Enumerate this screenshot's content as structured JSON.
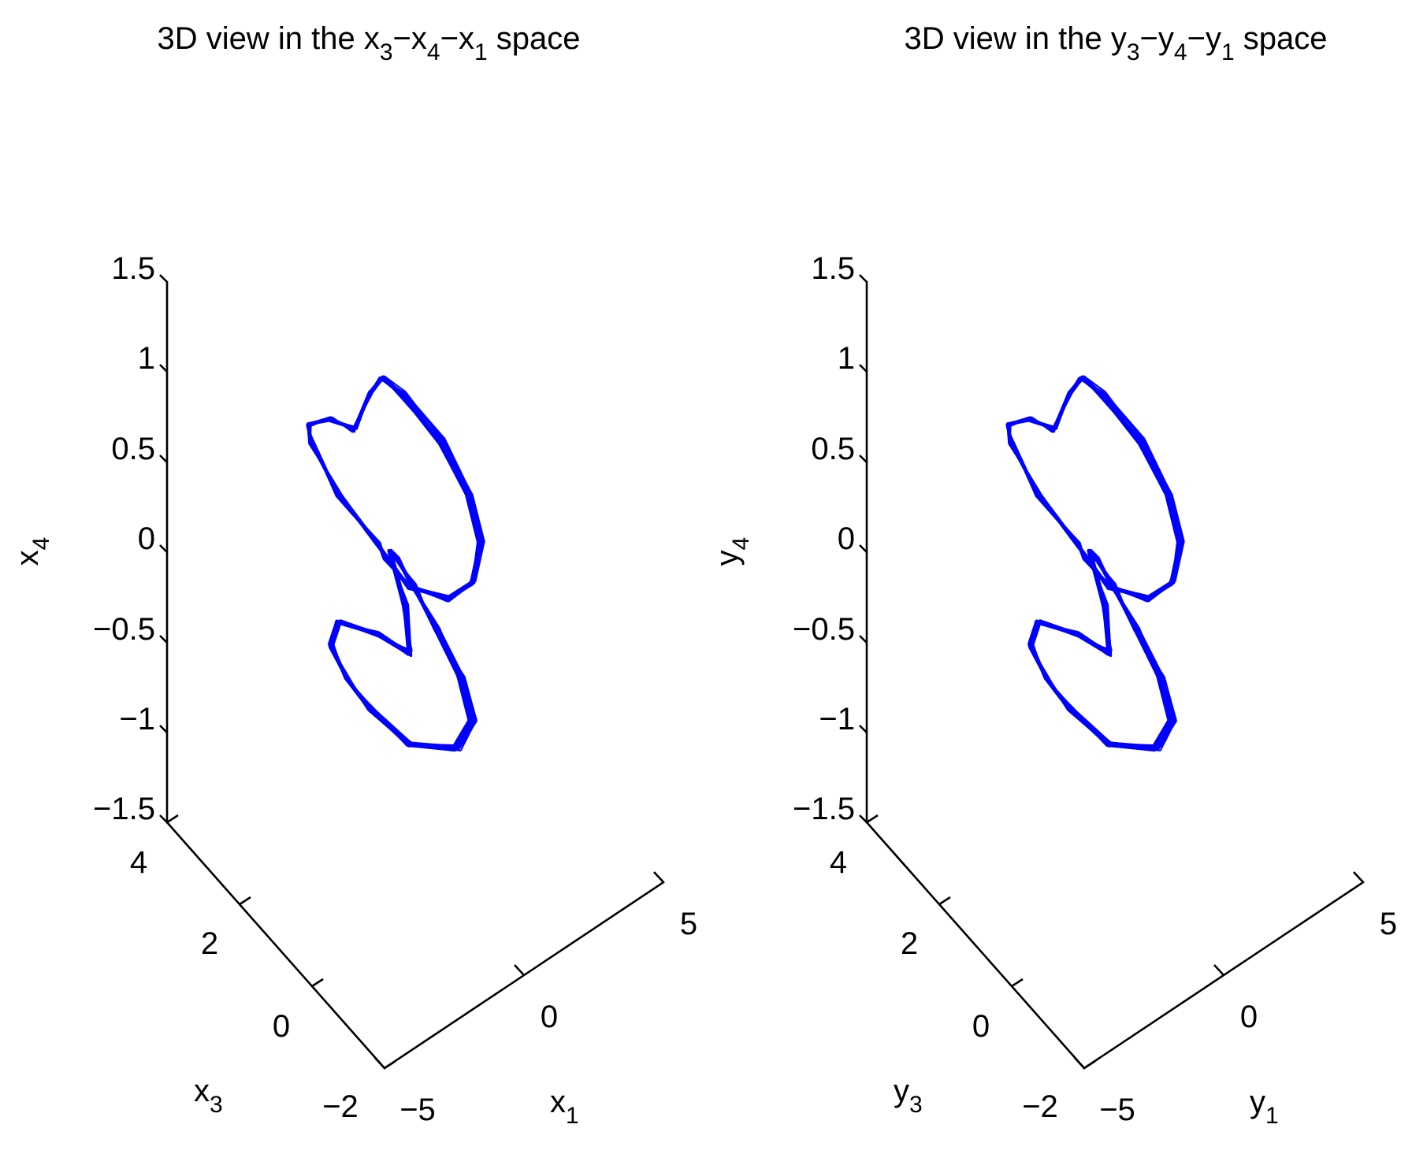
{
  "figure": {
    "background": "#ffffff",
    "line_color": "#0000ff"
  },
  "chart_data": [
    {
      "type": "line3d",
      "title": {
        "prefix": "3D view in the ",
        "v1": "x",
        "s1": "3",
        "v2": "x",
        "s2": "4",
        "v3": "x",
        "s3": "1",
        "suffix": " space"
      },
      "axes": {
        "vertical": {
          "var": "x",
          "sub": "4",
          "lim": [
            -1.5,
            1.5
          ],
          "ticks": [
            "−1.5",
            "−1",
            "−0.5",
            "0",
            "0.5",
            "1",
            "1.5"
          ]
        },
        "depth": {
          "var": "x",
          "sub": "3",
          "lim": [
            -2,
            4
          ],
          "ticks": [
            "−2",
            "0",
            "2",
            "4"
          ]
        },
        "horizontal": {
          "var": "x",
          "sub": "1",
          "lim": [
            -5,
            5
          ],
          "ticks": [
            "−5",
            "0",
            "5"
          ]
        }
      },
      "grid": false,
      "series": [
        {
          "color": "#0000ff",
          "description_of_shape": "chaotic double-lobed trajectory, x4 in [-1.15, 0.95]"
        }
      ]
    },
    {
      "type": "line3d",
      "title": {
        "prefix": "3D view in the ",
        "v1": "y",
        "s1": "3",
        "v2": "y",
        "s2": "4",
        "v3": "y",
        "s3": "1",
        "suffix": " space"
      },
      "axes": {
        "vertical": {
          "var": "y",
          "sub": "4",
          "lim": [
            -1.5,
            1.5
          ],
          "ticks": [
            "−1.5",
            "−1",
            "−0.5",
            "0",
            "0.5",
            "1",
            "1.5"
          ]
        },
        "depth": {
          "var": "y",
          "sub": "3",
          "lim": [
            -2,
            4
          ],
          "ticks": [
            "−2",
            "0",
            "2",
            "4"
          ]
        },
        "horizontal": {
          "var": "y",
          "sub": "1",
          "lim": [
            -5,
            5
          ],
          "ticks": [
            "−5",
            "0",
            "5"
          ]
        }
      },
      "grid": false,
      "series": [
        {
          "color": "#0000ff"
        }
      ]
    }
  ]
}
